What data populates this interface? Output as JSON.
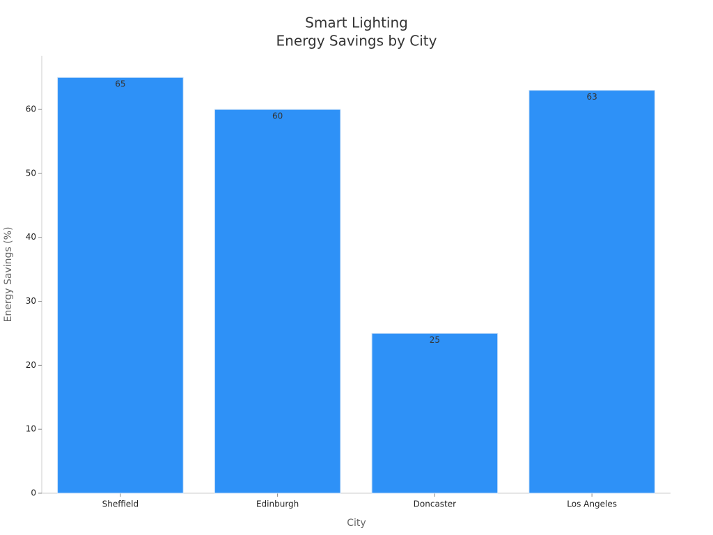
{
  "chart_data": {
    "type": "bar",
    "title": [
      "Smart Lighting",
      "Energy Savings by City"
    ],
    "x_label": "City",
    "y_label": "Energy Savings (%)",
    "categories": [
      "Sheffield",
      "Edinburgh",
      "Doncaster",
      "Los Angeles"
    ],
    "values": [
      65,
      60,
      25,
      63
    ],
    "color": "#2e91f7",
    "ylim": [
      0,
      68.4
    ],
    "yticks": [
      0,
      10,
      20,
      30,
      40,
      50,
      60
    ],
    "grid": false
  }
}
